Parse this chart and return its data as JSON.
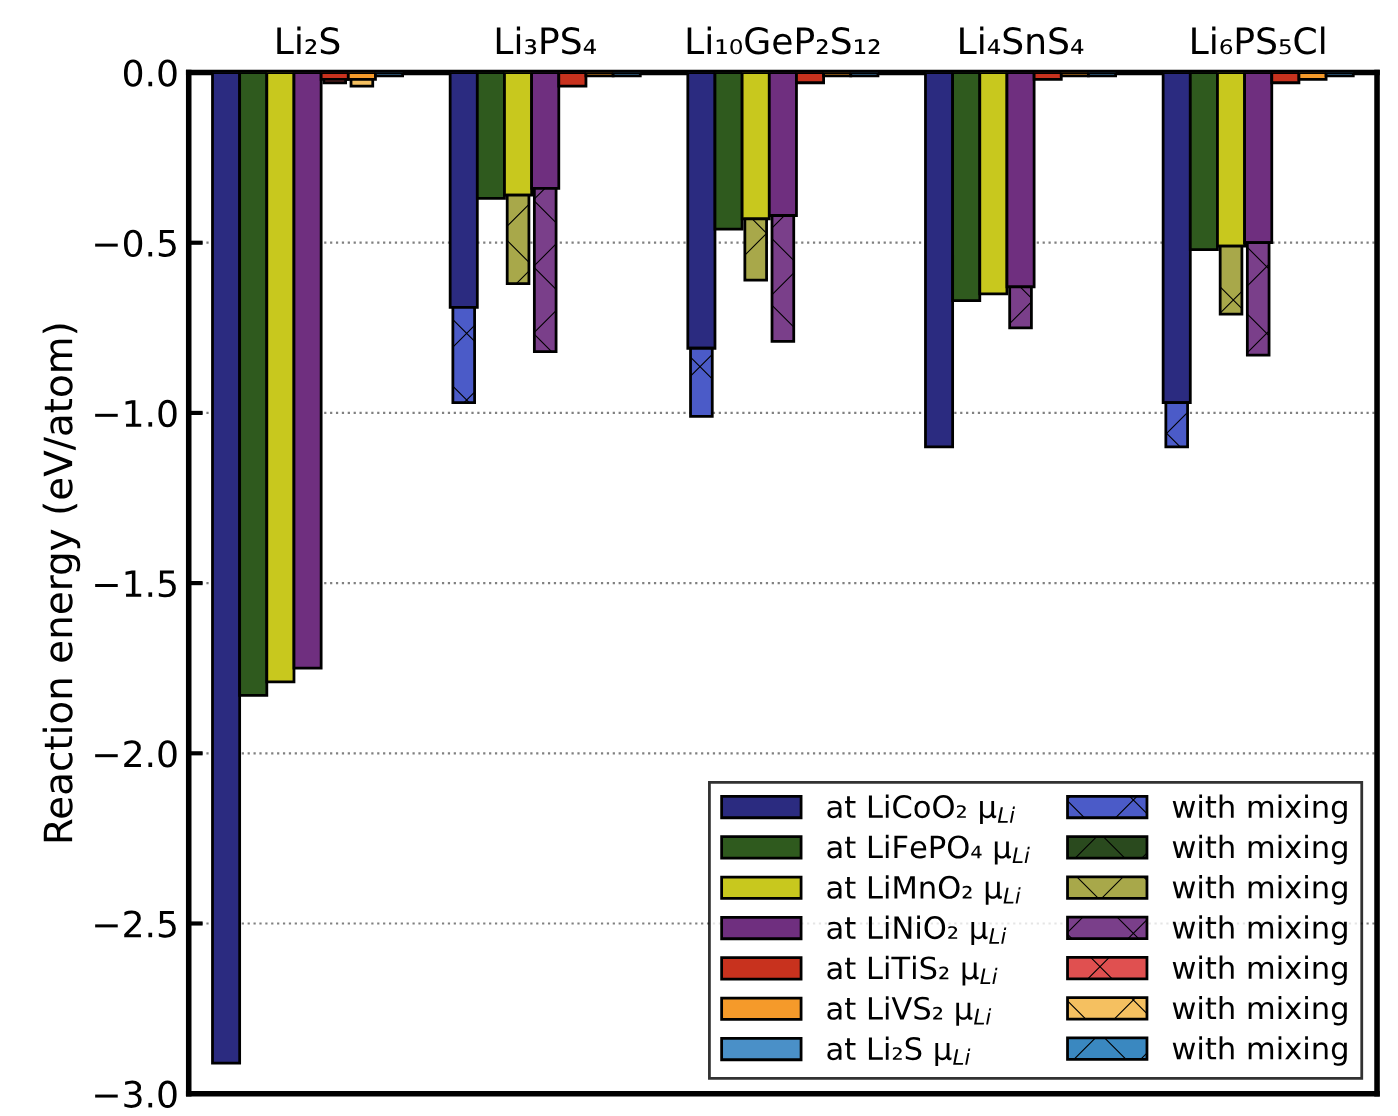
{
  "chart_data": {
    "type": "bar",
    "ylabel": "Reaction energy (eV/atom)",
    "categories": [
      "Li₂S",
      "Li₃PS₄",
      "Li₁₀GeP₂S₁₂",
      "Li₄SnS₄",
      "Li₆PS₅Cl"
    ],
    "series": [
      {
        "name": "at LiCoO₂ μ$_{Li}$",
        "color": "#2b2b80",
        "values": [
          -2.91,
          -0.69,
          -0.81,
          -1.1,
          -0.97
        ]
      },
      {
        "name": "at LiFePO₄ μ$_{Li}$",
        "color": "#2f5a1e",
        "values": [
          -1.83,
          -0.37,
          -0.46,
          -0.67,
          -0.52
        ]
      },
      {
        "name": "at LiMnO₂ μ$_{Li}$",
        "color": "#c8c81e",
        "values": [
          -1.79,
          -0.36,
          -0.43,
          -0.65,
          -0.51
        ]
      },
      {
        "name": "at LiNiO₂ μ$_{Li}$",
        "color": "#6f2f7f",
        "values": [
          -1.75,
          -0.34,
          -0.42,
          -0.63,
          -0.5
        ]
      },
      {
        "name": "at LiTiS₂ μ$_{Li}$",
        "color": "#c8321e",
        "values": [
          -0.02,
          -0.04,
          -0.03,
          -0.02,
          -0.03
        ]
      },
      {
        "name": "at LiVS₂ μ$_{Li}$",
        "color": "#f59a2a",
        "values": [
          -0.02,
          -0.01,
          -0.01,
          -0.01,
          -0.02
        ]
      },
      {
        "name": "at Li₂S μ$_{Li}$",
        "color": "#4a90c8",
        "values": [
          -0.01,
          -0.01,
          -0.01,
          -0.01,
          -0.01
        ]
      },
      {
        "name": "with mixing",
        "color": "#4b5bc8",
        "base": [
          null,
          -0.69,
          -0.81,
          null,
          -0.97
        ],
        "values": [
          null,
          -0.28,
          -0.2,
          null,
          -0.13
        ]
      },
      {
        "name": "with mixing",
        "color": "#2a4a1e",
        "values": [
          null,
          null,
          null,
          null,
          null
        ]
      },
      {
        "name": "with mixing",
        "color": "#a8a84a",
        "base": [
          null,
          -0.36,
          -0.43,
          null,
          -0.51
        ],
        "values": [
          null,
          -0.26,
          -0.18,
          null,
          -0.2
        ]
      },
      {
        "name": "with mixing",
        "color": "#7a3f8a",
        "base": [
          null,
          -0.34,
          -0.42,
          -0.63,
          -0.5
        ],
        "values": [
          null,
          -0.48,
          -0.37,
          -0.12,
          -0.33
        ]
      },
      {
        "name": "with mixing",
        "color": "#e05050",
        "base": [
          -0.02,
          null,
          null,
          null,
          null
        ],
        "values": [
          -0.01,
          null,
          null,
          null,
          null
        ]
      },
      {
        "name": "with mixing",
        "color": "#f5c060",
        "base": [
          -0.02,
          null,
          null,
          null,
          null
        ],
        "values": [
          -0.02,
          null,
          null,
          null,
          null
        ]
      },
      {
        "name": "with mixing",
        "color": "#3a88c0",
        "values": [
          null,
          null,
          null,
          null,
          null
        ]
      }
    ],
    "ylim": [
      -3.0,
      0.0
    ],
    "yticks": [
      {
        "value": -3.0,
        "label": "−3.0"
      },
      {
        "value": -2.5,
        "label": "−2.5"
      },
      {
        "value": -2.0,
        "label": "−2.0"
      },
      {
        "value": -1.5,
        "label": "−1.5"
      },
      {
        "value": -1.0,
        "label": "−1.0"
      },
      {
        "value": -0.5,
        "label": "−0.5"
      },
      {
        "value": 0.0,
        "label": "0.0"
      }
    ],
    "grid": "y",
    "legend": "bottom right"
  }
}
